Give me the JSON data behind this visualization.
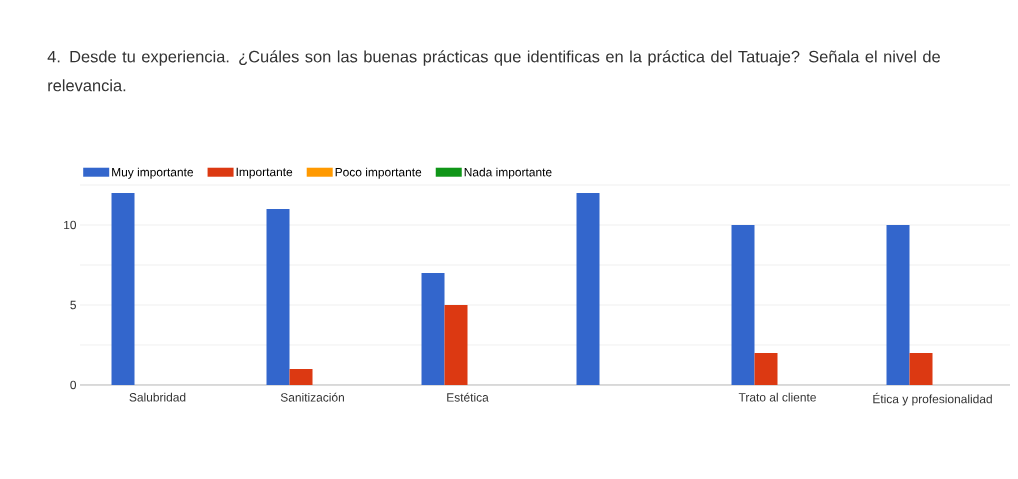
{
  "chart_data": {
    "type": "bar",
    "title": "4. Desde tu experiencia. ¿Cuáles son las buenas prácticas que identificas en la práctica del Tatuaje? Señala el nivel de relevancia.",
    "categories": [
      "Salubridad",
      "Sanitización",
      "Estética",
      null,
      "Trato al cliente",
      "Ética y profesionalidad"
    ],
    "series": [
      {
        "name": "Muy importante",
        "color": "#3366cc",
        "values": [
          12,
          11,
          7,
          12,
          10,
          10
        ]
      },
      {
        "name": "Importante",
        "color": "#dc3912",
        "values": [
          0,
          1,
          5,
          0,
          2,
          2
        ]
      },
      {
        "name": "Poco importante",
        "color": "#ff9900",
        "values": [
          0,
          0,
          0,
          0,
          0,
          0
        ]
      },
      {
        "name": "Nada importante",
        "color": "#109618",
        "values": [
          0,
          0,
          0,
          0,
          0,
          0
        ]
      }
    ],
    "ylim": [
      0,
      12.5
    ],
    "yticks": [
      0,
      {
        "value": 2.5,
        "label": null
      },
      5,
      {
        "value": 7.5,
        "label": null
      },
      10,
      {
        "value": 12.5,
        "label": null
      }
    ],
    "grid": "y",
    "legend": "top left"
  }
}
